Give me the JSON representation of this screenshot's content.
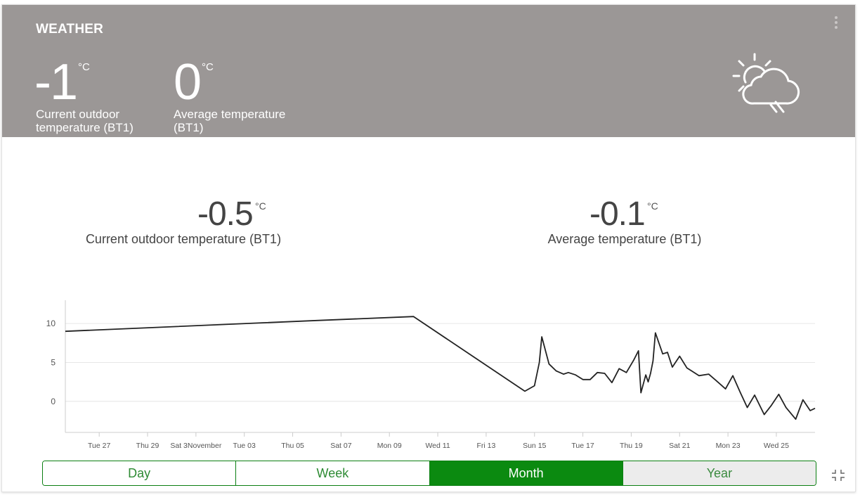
{
  "header": {
    "title": "WEATHER",
    "current": {
      "value": "-1",
      "unit": "°C",
      "label": "Current outdoor temperature (BT1)"
    },
    "average": {
      "value": "0",
      "unit": "°C",
      "label": "Average temperature (BT1)"
    },
    "weather_icon": "partly-cloudy-rain-icon",
    "menu_icon": "more-vertical-icon"
  },
  "summary": {
    "current": {
      "value": "-0.5",
      "unit": "°C",
      "label": "Current outdoor temperature (BT1)"
    },
    "average": {
      "value": "-0.1",
      "unit": "°C",
      "label": "Average temperature (BT1)"
    }
  },
  "chart_data": {
    "type": "line",
    "title": "",
    "xlabel": "",
    "ylabel": "",
    "x_ticks": [
      "Tue 27",
      "Thu 29",
      "Sat 3November",
      "Tue 03",
      "Thu 05",
      "Sat 07",
      "Mon 09",
      "Wed 11",
      "Fri 13",
      "Sun 15",
      "Tue 17",
      "Thu 19",
      "Sat 21",
      "Mon 23",
      "Wed 25"
    ],
    "y_ticks": [
      10,
      5,
      0
    ],
    "ylim": [
      -4,
      13
    ],
    "xlim": [
      25.6,
      56.6
    ],
    "grid": true,
    "series": [
      {
        "x": [
          25.6,
          36.0,
          40.0,
          44.6,
          45.0,
          45.2,
          45.3,
          45.6,
          45.9,
          46.2,
          46.4,
          46.7,
          47.0,
          47.3,
          47.6,
          47.9,
          48.2,
          48.5,
          48.8,
          49.1,
          49.3,
          49.4,
          49.6,
          49.7,
          49.8,
          49.9,
          50.0,
          50.3,
          50.5,
          50.7,
          51.0,
          51.3,
          51.5,
          51.8,
          52.2,
          52.5,
          52.9,
          53.2,
          53.5,
          53.8,
          54.1,
          54.5,
          54.8,
          55.1,
          55.4,
          55.8,
          56.1,
          56.4,
          56.6
        ],
        "y": [
          9.0,
          10.4,
          10.9,
          1.3,
          2.0,
          5.0,
          8.3,
          4.8,
          3.9,
          3.5,
          3.7,
          3.4,
          2.8,
          2.8,
          3.7,
          3.6,
          2.4,
          4.2,
          3.7,
          5.3,
          6.5,
          1.1,
          3.4,
          2.5,
          3.6,
          5.2,
          8.8,
          6.1,
          6.3,
          4.4,
          5.8,
          4.3,
          3.9,
          3.3,
          3.5,
          2.7,
          1.6,
          3.3,
          1.2,
          -0.8,
          0.8,
          -1.7,
          -0.5,
          0.9,
          -0.8,
          -2.3,
          0.2,
          -1.2,
          -0.9
        ]
      }
    ]
  },
  "range_tabs": [
    "Day",
    "Week",
    "Month",
    "Year"
  ],
  "active_tab": "Month",
  "expand_icon": "collapse-icon",
  "colors": {
    "header_bg": "#9b9796",
    "accent": "#0b8a10",
    "line": "#222222"
  }
}
